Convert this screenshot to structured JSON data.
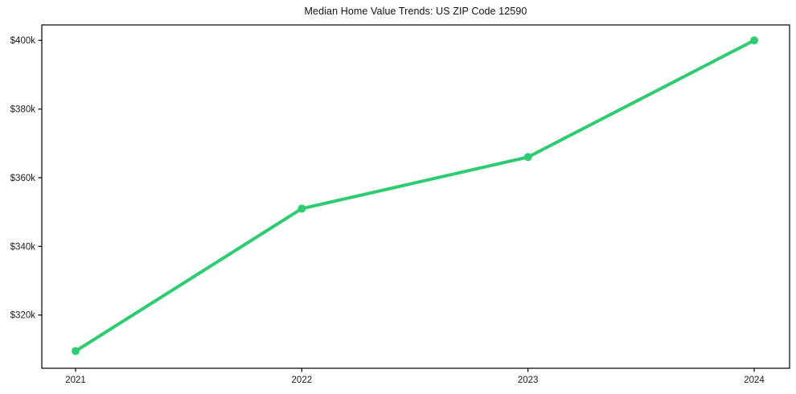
{
  "chart_data": {
    "type": "line",
    "title": "Median Home Value Trends: US ZIP Code 12590",
    "xlabel": "",
    "ylabel": "",
    "categories": [
      "2021",
      "2022",
      "2023",
      "2024"
    ],
    "series": [
      {
        "values": [
          309500,
          351000,
          366000,
          400000
        ]
      }
    ],
    "y_ticks": [
      {
        "value": 320000,
        "label": "$320k"
      },
      {
        "value": 340000,
        "label": "$340k"
      },
      {
        "value": 360000,
        "label": "$360k"
      },
      {
        "value": 380000,
        "label": "$380k"
      },
      {
        "value": 400000,
        "label": "$400k"
      }
    ],
    "ylim": [
      304500,
      404500
    ],
    "grid": false,
    "legend_position": "none",
    "marker": "circle",
    "colors": {
      "line": "#2ecc71",
      "axis": "#000000",
      "text": "#1a1a1a",
      "background": "#ffffff"
    }
  }
}
